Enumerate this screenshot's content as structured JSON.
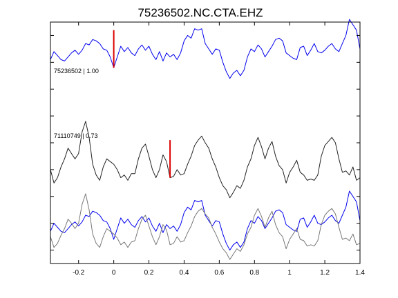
{
  "chart_data": {
    "type": "line",
    "title": "75236502.NC.CTA.EHZ",
    "xlabel": "",
    "ylabel": "",
    "xlim": [
      -0.36,
      1.4
    ],
    "ylim": [
      0,
      9
    ],
    "grid": false,
    "x_ticks": [
      -0.2,
      0,
      0.2,
      0.4,
      0.6,
      0.8,
      1.0,
      1.2,
      1.4
    ],
    "x_tick_labels": [
      "-0.2",
      "0",
      "0.2",
      "0.4",
      "0.6",
      "0.8",
      "1",
      "1.2",
      "1.4"
    ],
    "y_ticks": [
      0.5,
      1.5,
      2.5,
      3.5,
      4.5,
      5.5,
      6.5,
      7.5,
      8.5
    ],
    "colors": {
      "reference": "#0000ee",
      "comparison": "#222222",
      "comparison_overlay": "#777777",
      "pick": "#dd0000"
    },
    "trace_labels": [
      "75236502 | 1.00",
      "71110749 | 0.73"
    ],
    "series": [
      {
        "role": "reference",
        "color": "#0000ee",
        "x": [
          -0.36,
          -0.34,
          -0.32,
          -0.3,
          -0.28,
          -0.26,
          -0.24,
          -0.22,
          -0.2,
          -0.18,
          -0.16,
          -0.14,
          -0.12,
          -0.1,
          -0.08,
          -0.06,
          -0.04,
          -0.02,
          0.0,
          0.02,
          0.04,
          0.06,
          0.08,
          0.1,
          0.12,
          0.14,
          0.16,
          0.18,
          0.2,
          0.22,
          0.24,
          0.26,
          0.28,
          0.3,
          0.32,
          0.34,
          0.36,
          0.38,
          0.4,
          0.42,
          0.44,
          0.46,
          0.48,
          0.5,
          0.52,
          0.54,
          0.56,
          0.58,
          0.6,
          0.62,
          0.64,
          0.66,
          0.68,
          0.7,
          0.72,
          0.74,
          0.76,
          0.78,
          0.8,
          0.82,
          0.84,
          0.86,
          0.88,
          0.9,
          0.92,
          0.94,
          0.96,
          0.98,
          1.0,
          1.02,
          1.04,
          1.06,
          1.08,
          1.1,
          1.12,
          1.14,
          1.16,
          1.18,
          1.2,
          1.22,
          1.24,
          1.26,
          1.28,
          1.3,
          1.32,
          1.34,
          1.36,
          1.38,
          1.4
        ],
        "y": [
          7.6,
          7.9,
          7.75,
          7.6,
          7.55,
          7.7,
          7.85,
          7.95,
          7.8,
          7.95,
          8.2,
          8.15,
          8.35,
          8.3,
          8.2,
          8.0,
          7.95,
          7.7,
          7.3,
          7.7,
          8.1,
          7.9,
          8.05,
          7.85,
          7.75,
          8.0,
          8.15,
          7.95,
          8.1,
          7.8,
          7.6,
          7.9,
          7.55,
          7.85,
          7.7,
          7.8,
          7.6,
          7.85,
          8.3,
          8.5,
          8.4,
          8.75,
          8.7,
          8.75,
          8.2,
          8.0,
          7.8,
          8.0,
          7.95,
          7.5,
          7.15,
          6.9,
          7.1,
          7.2,
          7.0,
          7.2,
          7.7,
          8.0,
          7.9,
          8.15,
          8.0,
          7.7,
          7.9,
          8.1,
          8.35,
          8.4,
          8.3,
          7.85,
          7.75,
          7.65,
          7.6,
          8.05,
          8.1,
          7.75,
          7.95,
          8.2,
          7.9,
          7.85,
          7.95,
          8.1,
          8.2,
          8.0,
          7.9,
          8.2,
          8.5,
          9.1,
          8.9,
          8.7,
          8.0
        ]
      },
      {
        "role": "comparison",
        "color": "#222222",
        "x": [
          -0.36,
          -0.34,
          -0.32,
          -0.3,
          -0.28,
          -0.26,
          -0.24,
          -0.22,
          -0.2,
          -0.18,
          -0.16,
          -0.14,
          -0.12,
          -0.1,
          -0.08,
          -0.06,
          -0.04,
          -0.02,
          0.0,
          0.02,
          0.04,
          0.06,
          0.08,
          0.1,
          0.12,
          0.14,
          0.16,
          0.18,
          0.2,
          0.22,
          0.24,
          0.26,
          0.28,
          0.3,
          0.32,
          0.34,
          0.36,
          0.38,
          0.4,
          0.42,
          0.44,
          0.46,
          0.48,
          0.5,
          0.52,
          0.54,
          0.56,
          0.58,
          0.6,
          0.62,
          0.64,
          0.66,
          0.68,
          0.7,
          0.72,
          0.74,
          0.76,
          0.78,
          0.8,
          0.82,
          0.84,
          0.86,
          0.88,
          0.9,
          0.92,
          0.94,
          0.96,
          0.98,
          1.0,
          1.02,
          1.04,
          1.06,
          1.08,
          1.1,
          1.12,
          1.14,
          1.16,
          1.18,
          1.2,
          1.22,
          1.24,
          1.26,
          1.28,
          1.3,
          1.32,
          1.34,
          1.36,
          1.38,
          1.4
        ],
        "y": [
          3.5,
          3.0,
          3.2,
          3.6,
          3.9,
          4.3,
          4.1,
          3.9,
          4.1,
          4.9,
          5.3,
          4.7,
          3.7,
          3.3,
          3.1,
          3.6,
          3.9,
          3.8,
          3.7,
          3.5,
          3.2,
          3.3,
          3.1,
          3.35,
          3.35,
          3.9,
          4.3,
          4.45,
          4.0,
          3.5,
          3.2,
          3.5,
          4.05,
          3.8,
          3.2,
          3.25,
          3.5,
          3.3,
          3.35,
          3.7,
          4.0,
          4.4,
          4.6,
          4.75,
          4.5,
          4.3,
          3.9,
          3.6,
          3.2,
          2.9,
          2.75,
          2.45,
          2.65,
          2.9,
          2.8,
          3.1,
          3.6,
          3.9,
          4.4,
          4.7,
          4.35,
          3.9,
          4.3,
          4.55,
          4.0,
          3.65,
          3.5,
          3.0,
          3.4,
          3.6,
          3.85,
          3.4,
          3.3,
          3.1,
          3.15,
          3.1,
          3.3,
          4.0,
          4.4,
          4.55,
          4.7,
          4.5,
          3.9,
          3.4,
          3.45,
          3.3,
          3.6,
          3.1,
          3.2
        ]
      },
      {
        "role": "reference_overlay",
        "color": "#0000ee",
        "x": [
          -0.36,
          -0.34,
          -0.32,
          -0.3,
          -0.28,
          -0.26,
          -0.24,
          -0.22,
          -0.2,
          -0.18,
          -0.16,
          -0.14,
          -0.12,
          -0.1,
          -0.08,
          -0.06,
          -0.04,
          -0.02,
          0.0,
          0.02,
          0.04,
          0.06,
          0.08,
          0.1,
          0.12,
          0.14,
          0.16,
          0.18,
          0.2,
          0.22,
          0.24,
          0.26,
          0.28,
          0.3,
          0.32,
          0.34,
          0.36,
          0.38,
          0.4,
          0.42,
          0.44,
          0.46,
          0.48,
          0.5,
          0.52,
          0.54,
          0.56,
          0.58,
          0.6,
          0.62,
          0.64,
          0.66,
          0.68,
          0.7,
          0.72,
          0.74,
          0.76,
          0.78,
          0.8,
          0.82,
          0.84,
          0.86,
          0.88,
          0.9,
          0.92,
          0.94,
          0.96,
          0.98,
          1.0,
          1.02,
          1.04,
          1.06,
          1.08,
          1.1,
          1.12,
          1.14,
          1.16,
          1.18,
          1.2,
          1.22,
          1.24,
          1.26,
          1.28,
          1.3,
          1.32,
          1.34,
          1.36,
          1.38,
          1.4
        ],
        "y": [
          1.2,
          1.5,
          1.35,
          1.2,
          1.15,
          1.3,
          1.45,
          1.55,
          1.4,
          1.55,
          1.8,
          1.75,
          1.95,
          1.9,
          1.8,
          1.6,
          1.55,
          1.3,
          0.9,
          1.3,
          1.7,
          1.5,
          1.65,
          1.45,
          1.35,
          1.6,
          1.75,
          1.55,
          1.7,
          1.4,
          1.2,
          1.5,
          1.15,
          1.45,
          1.3,
          1.4,
          1.2,
          1.45,
          1.9,
          2.1,
          2.0,
          2.35,
          2.3,
          2.35,
          1.8,
          1.6,
          1.4,
          1.6,
          1.55,
          1.1,
          0.75,
          0.5,
          0.7,
          0.8,
          0.6,
          0.8,
          1.3,
          1.6,
          1.5,
          1.75,
          1.6,
          1.3,
          1.5,
          1.7,
          1.95,
          2.0,
          1.9,
          1.45,
          1.35,
          1.25,
          1.2,
          1.65,
          1.7,
          1.35,
          1.55,
          1.8,
          1.5,
          1.45,
          1.55,
          1.7,
          1.8,
          1.6,
          1.5,
          1.8,
          2.1,
          2.7,
          2.5,
          2.3,
          1.6
        ]
      },
      {
        "role": "comparison_overlay",
        "color": "#777777",
        "x": [
          -0.36,
          -0.34,
          -0.32,
          -0.3,
          -0.28,
          -0.26,
          -0.24,
          -0.22,
          -0.2,
          -0.18,
          -0.16,
          -0.14,
          -0.12,
          -0.1,
          -0.08,
          -0.06,
          -0.04,
          -0.02,
          0.0,
          0.02,
          0.04,
          0.06,
          0.08,
          0.1,
          0.12,
          0.14,
          0.16,
          0.18,
          0.2,
          0.22,
          0.24,
          0.26,
          0.28,
          0.3,
          0.32,
          0.34,
          0.36,
          0.38,
          0.4,
          0.42,
          0.44,
          0.46,
          0.48,
          0.5,
          0.52,
          0.54,
          0.56,
          0.58,
          0.6,
          0.62,
          0.64,
          0.66,
          0.68,
          0.7,
          0.72,
          0.74,
          0.76,
          0.78,
          0.8,
          0.82,
          0.84,
          0.86,
          0.88,
          0.9,
          0.92,
          0.94,
          0.96,
          0.98,
          1.0,
          1.02,
          1.04,
          1.06,
          1.08,
          1.1,
          1.12,
          1.14,
          1.16,
          1.18,
          1.2,
          1.22,
          1.24,
          1.26,
          1.28,
          1.3,
          1.32,
          1.34,
          1.36,
          1.38,
          1.4
        ],
        "y": [
          1.0,
          0.6,
          0.75,
          1.05,
          1.3,
          1.65,
          1.5,
          1.3,
          1.5,
          2.2,
          2.6,
          2.0,
          1.1,
          0.75,
          0.6,
          1.0,
          1.3,
          1.2,
          1.1,
          0.95,
          0.7,
          0.8,
          0.6,
          0.8,
          0.85,
          1.3,
          1.65,
          1.8,
          1.4,
          1.0,
          0.7,
          1.0,
          1.45,
          1.25,
          0.7,
          0.75,
          1.0,
          0.8,
          0.85,
          1.15,
          1.4,
          1.75,
          1.95,
          2.05,
          1.85,
          1.7,
          1.35,
          1.1,
          0.8,
          0.55,
          0.4,
          0.15,
          0.35,
          0.55,
          0.45,
          0.7,
          1.1,
          1.35,
          1.8,
          2.05,
          1.75,
          1.35,
          1.7,
          1.95,
          1.45,
          1.15,
          1.0,
          0.55,
          0.9,
          1.1,
          1.3,
          0.9,
          0.85,
          0.65,
          0.7,
          0.65,
          0.85,
          1.45,
          1.8,
          1.95,
          2.05,
          1.85,
          1.35,
          0.9,
          0.95,
          0.85,
          1.1,
          0.7,
          0.75
        ]
      }
    ],
    "picks": [
      {
        "x": 0.0,
        "y0": 7.3,
        "y1": 8.7,
        "color": "#dd0000"
      },
      {
        "x": 0.32,
        "y0": 3.2,
        "y1": 4.6,
        "color": "#dd0000"
      }
    ]
  }
}
